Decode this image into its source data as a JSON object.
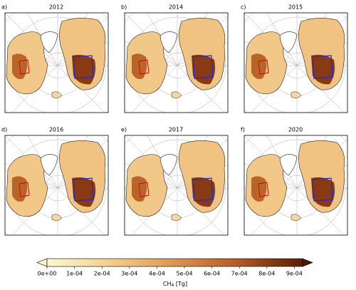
{
  "panels": [
    {
      "label": "a)",
      "year": "2012"
    },
    {
      "label": "b)",
      "year": "2014"
    },
    {
      "label": "c)",
      "year": "2015"
    },
    {
      "label": "d)",
      "year": "2016"
    },
    {
      "label": "e)",
      "year": "2017"
    },
    {
      "label": "f)",
      "year": "2020"
    }
  ],
  "colorbar": {
    "label": "CH",
    "label_sub": "4",
    "label_unit": "[Tg]",
    "clim": [
      0,
      0.00093
    ],
    "ticks": [
      {
        "value": 0,
        "label": "0e+00"
      },
      {
        "value": 0.0001,
        "label": "1e-04"
      },
      {
        "value": 0.0002,
        "label": "2e-04"
      },
      {
        "value": 0.0003,
        "label": "3e-04"
      },
      {
        "value": 0.0004,
        "label": "4e-04"
      },
      {
        "value": 0.0005,
        "label": "5e-04"
      },
      {
        "value": 0.0006,
        "label": "6e-04"
      },
      {
        "value": 0.0007,
        "label": "7e-04"
      },
      {
        "value": 0.0008,
        "label": "8e-04"
      },
      {
        "value": 0.0009,
        "label": "9e-04"
      }
    ]
  }
}
